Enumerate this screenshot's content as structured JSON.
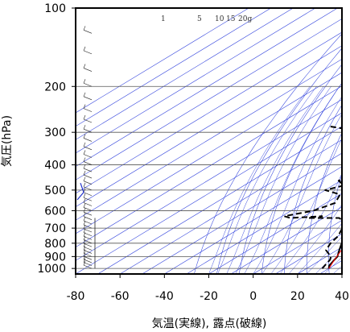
{
  "chart_data": {
    "type": "line",
    "subtype": "skew-T log-p thermodynamic diagram",
    "xlabel": "気温(実線), 露点(破線)",
    "ylabel": "気圧(hPa)",
    "x_ticks": [
      -80,
      -60,
      -40,
      -20,
      0,
      20,
      40
    ],
    "y_ticks": [
      100,
      200,
      300,
      400,
      500,
      600,
      700,
      800,
      900,
      1000
    ],
    "xlim": [
      -80,
      40
    ],
    "ylim": [
      1050,
      100
    ],
    "y_scale": "log",
    "grid": true,
    "mixing_ratio_labels": [
      "1",
      "5",
      "10",
      "15",
      "20g"
    ],
    "series": [
      {
        "line": "solid",
        "color": "#000000",
        "points": [
          [
            1000,
            30
          ],
          [
            975,
            28
          ],
          [
            950,
            27
          ],
          [
            925,
            26
          ],
          [
            900,
            25
          ],
          [
            850,
            21
          ],
          [
            800,
            17
          ],
          [
            750,
            13
          ],
          [
            700,
            9
          ],
          [
            650,
            4
          ],
          [
            600,
            -1
          ],
          [
            550,
            -5
          ],
          [
            500,
            -9
          ],
          [
            450,
            -14
          ],
          [
            400,
            -20
          ],
          [
            350,
            -27
          ],
          [
            300,
            -35
          ],
          [
            250,
            -44
          ],
          [
            200,
            -54
          ],
          [
            175,
            -61
          ],
          [
            150,
            -67
          ],
          [
            125,
            -72
          ],
          [
            115,
            -73
          ],
          [
            105,
            -72
          ],
          [
            100,
            -72
          ]
        ]
      },
      {
        "line": "dashed",
        "color": "#000000",
        "points": [
          [
            1000,
            27
          ],
          [
            975,
            26
          ],
          [
            950,
            25
          ],
          [
            925,
            24
          ],
          [
            900,
            22
          ],
          [
            850,
            15
          ],
          [
            800,
            12
          ],
          [
            750,
            10
          ],
          [
            700,
            6
          ],
          [
            660,
            2
          ],
          [
            640,
            -3
          ],
          [
            640,
            -17
          ],
          [
            630,
            -12
          ],
          [
            640,
            -25
          ],
          [
            630,
            -29
          ],
          [
            600,
            -20
          ],
          [
            560,
            -16
          ],
          [
            520,
            -20
          ],
          [
            500,
            -30
          ],
          [
            480,
            -25
          ],
          [
            460,
            -31
          ],
          [
            440,
            -27
          ],
          [
            420,
            -33
          ],
          [
            400,
            -40
          ],
          [
            350,
            -47
          ],
          [
            320,
            -55
          ],
          [
            300,
            -58
          ],
          [
            290,
            -68
          ],
          [
            285,
            -75
          ]
        ]
      },
      {
        "line": "solid",
        "color": "#ff0000",
        "points": [
          [
            1000,
            30
          ],
          [
            925,
            26
          ],
          [
            850,
            22
          ],
          [
            750,
            15
          ],
          [
            650,
            7
          ],
          [
            550,
            -3
          ],
          [
            450,
            -13
          ],
          [
            350,
            -26
          ],
          [
            250,
            -42
          ],
          [
            150,
            -63
          ],
          [
            120,
            -72
          ]
        ]
      }
    ]
  }
}
